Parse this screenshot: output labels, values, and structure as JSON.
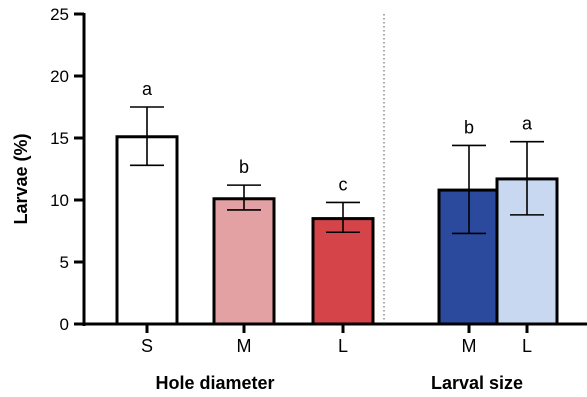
{
  "chart_data": {
    "type": "bar",
    "ylabel": "Larvae (%)",
    "ylim": [
      0,
      25
    ],
    "yticks": [
      0,
      5,
      10,
      15,
      20,
      25
    ],
    "grid": false,
    "error_bars": true,
    "groups": [
      {
        "title": "Hole diameter",
        "bars": [
          {
            "category": "S",
            "value": 15.1,
            "err_low": 12.8,
            "err_high": 17.5,
            "label": "a",
            "color": "#ffffff"
          },
          {
            "category": "M",
            "value": 10.1,
            "err_low": 9.2,
            "err_high": 11.2,
            "label": "b",
            "color": "#e3a1a4"
          },
          {
            "category": "L",
            "value": 8.5,
            "err_low": 7.4,
            "err_high": 9.8,
            "label": "c",
            "color": "#d44448"
          }
        ]
      },
      {
        "title": "Larval size",
        "bars": [
          {
            "category": "M",
            "value": 10.8,
            "err_low": 7.3,
            "err_high": 14.4,
            "label": "b",
            "color": "#2b4a9e"
          },
          {
            "category": "L",
            "value": 11.7,
            "err_low": 8.8,
            "err_high": 14.7,
            "label": "a",
            "color": "#c7d8f0"
          }
        ]
      }
    ],
    "group_separator": "dotted"
  }
}
